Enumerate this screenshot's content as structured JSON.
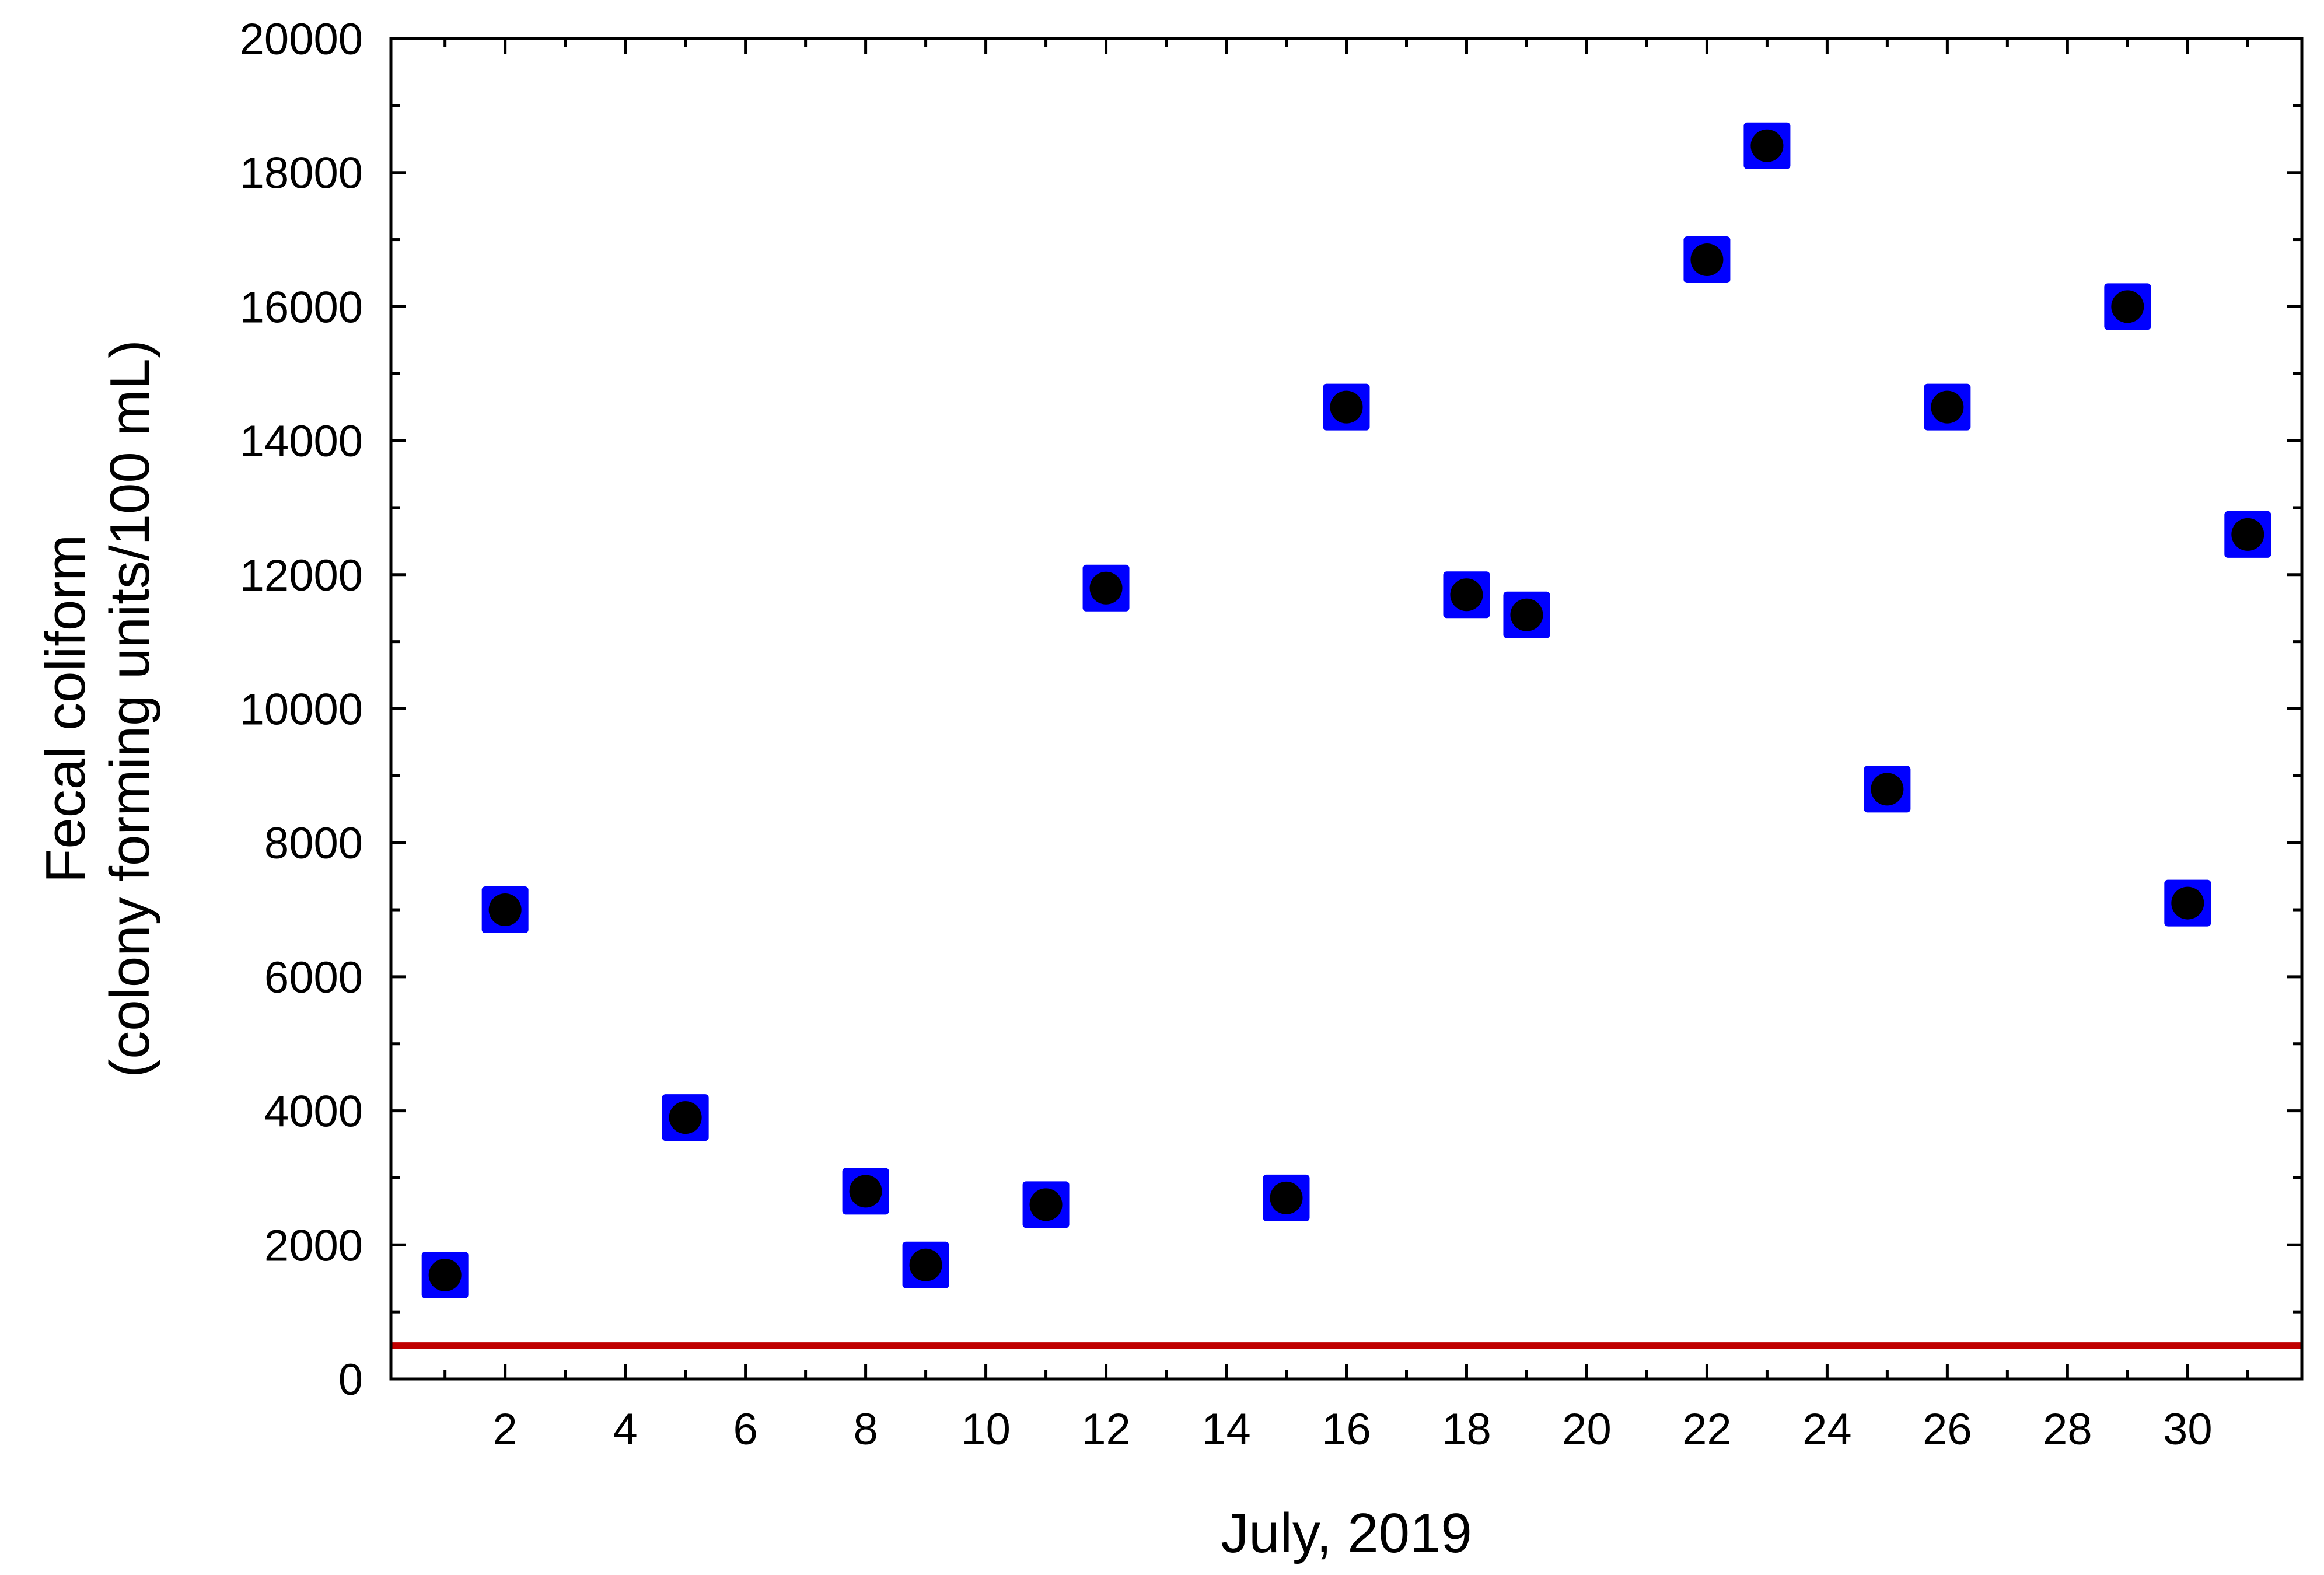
{
  "chart_data": {
    "type": "scatter",
    "title": "",
    "xlabel": "July, 2019",
    "ylabel_lines": [
      "Fecal coliform",
      "(colony forming units/100 mL)"
    ],
    "xlim": [
      0.1,
      31.9
    ],
    "ylim": [
      0,
      20000
    ],
    "x_ticks": [
      2,
      4,
      6,
      8,
      10,
      12,
      14,
      16,
      18,
      20,
      22,
      24,
      26,
      28,
      30
    ],
    "y_ticks": [
      0,
      2000,
      4000,
      6000,
      8000,
      10000,
      12000,
      14000,
      16000,
      18000,
      20000
    ],
    "grid": false,
    "marker_fill": "#0000ff",
    "marker_dot": "#000000",
    "reference_line": {
      "y": 500,
      "color": "#c00000"
    },
    "points": [
      {
        "x": 1,
        "y": 1550
      },
      {
        "x": 2,
        "y": 7000
      },
      {
        "x": 5,
        "y": 3900
      },
      {
        "x": 8,
        "y": 2800
      },
      {
        "x": 9,
        "y": 1700
      },
      {
        "x": 11,
        "y": 2600
      },
      {
        "x": 12,
        "y": 11800
      },
      {
        "x": 15,
        "y": 2700
      },
      {
        "x": 16,
        "y": 14500
      },
      {
        "x": 18,
        "y": 11700
      },
      {
        "x": 19,
        "y": 11400
      },
      {
        "x": 22,
        "y": 16700
      },
      {
        "x": 23,
        "y": 18400
      },
      {
        "x": 25,
        "y": 8800
      },
      {
        "x": 26,
        "y": 14500
      },
      {
        "x": 29,
        "y": 16000
      },
      {
        "x": 30,
        "y": 7100
      },
      {
        "x": 31,
        "y": 12600
      }
    ]
  }
}
